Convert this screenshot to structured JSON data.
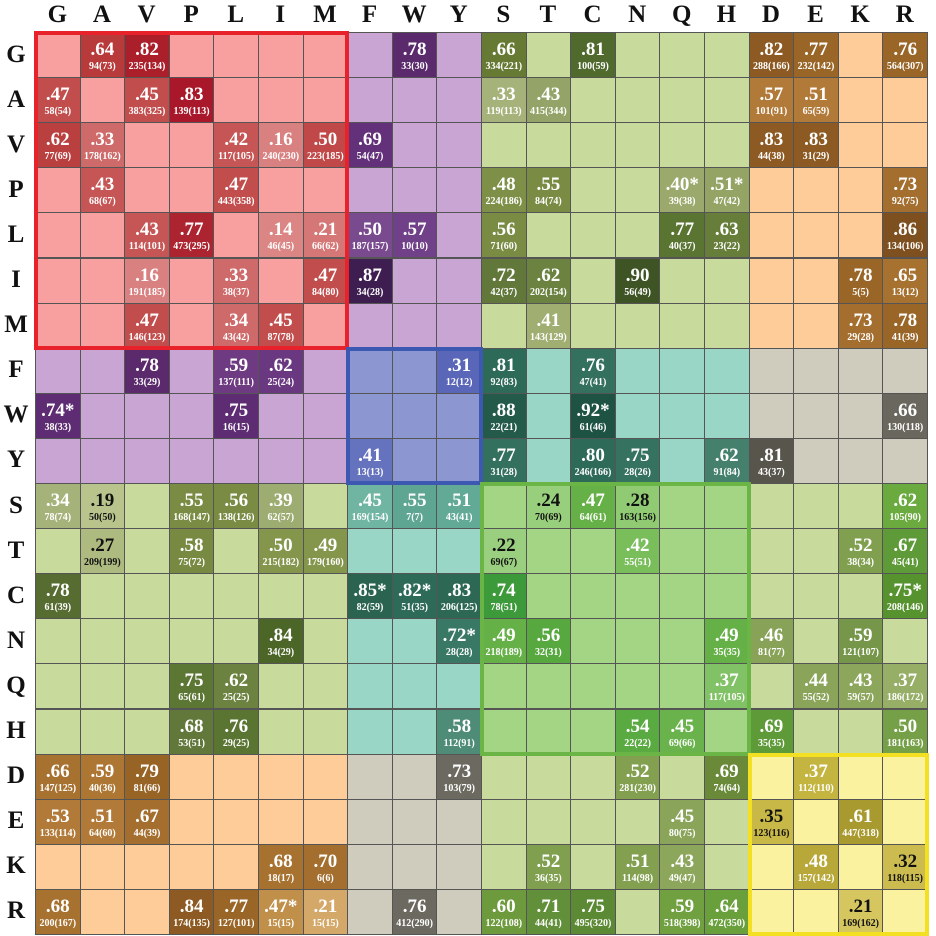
{
  "columns": [
    "G",
    "A",
    "V",
    "P",
    "L",
    "I",
    "M",
    "F",
    "W",
    "Y",
    "S",
    "T",
    "C",
    "N",
    "Q",
    "H",
    "D",
    "E",
    "K",
    "R"
  ],
  "rows": [
    "G",
    "A",
    "V",
    "P",
    "L",
    "I",
    "M",
    "F",
    "W",
    "Y",
    "S",
    "T",
    "C",
    "N",
    "Q",
    "H",
    "D",
    "E",
    "K",
    "R"
  ],
  "region_colors": {
    "aliphatic": "#F8A0A0",
    "aromatic": "#C9A5D4",
    "aromatic_core": "#8C97D2",
    "polar": "#C8DB9C",
    "polar_core": "#A4D585",
    "charged": "#FECC99",
    "charged_core": "#FBF2A0",
    "grey": "#CFCCBE",
    "teal": "#99D6C6"
  },
  "box_colors": {
    "aliphatic": "#E8222A",
    "aromatic": "#3C58B0",
    "polar": "#6AB545",
    "charged": "#F3E022"
  },
  "cells": [
    {
      "r": 0,
      "c": 1,
      "v": ".64",
      "n": "94(73)",
      "bg": "#B83A3A"
    },
    {
      "r": 0,
      "c": 2,
      "v": ".82",
      "n": "235(134)",
      "bg": "#AA1F2A"
    },
    {
      "r": 0,
      "c": 8,
      "v": ".78",
      "n": "33(30)",
      "bg": "#5B2A6C"
    },
    {
      "r": 0,
      "c": 10,
      "v": ".66",
      "n": "334(221)",
      "bg": "#667A34"
    },
    {
      "r": 0,
      "c": 12,
      "v": ".81",
      "n": "100(59)",
      "bg": "#4F6A2C"
    },
    {
      "r": 0,
      "c": 16,
      "v": ".82",
      "n": "288(166)",
      "bg": "#8C5A22"
    },
    {
      "r": 0,
      "c": 17,
      "v": ".77",
      "n": "232(142)",
      "bg": "#9A6628"
    },
    {
      "r": 0,
      "c": 19,
      "v": ".76",
      "n": "564(307)",
      "bg": "#9A6628"
    },
    {
      "r": 1,
      "c": 0,
      "v": ".47",
      "n": "58(54)",
      "bg": "#C24D4D"
    },
    {
      "r": 1,
      "c": 2,
      "v": ".45",
      "n": "383(325)",
      "bg": "#C24D4D"
    },
    {
      "r": 1,
      "c": 3,
      "v": ".83",
      "n": "139(113)",
      "bg": "#A8182A"
    },
    {
      "r": 1,
      "c": 10,
      "v": ".33",
      "n": "119(113)",
      "bg": "#A5B27A"
    },
    {
      "r": 1,
      "c": 11,
      "v": ".43",
      "n": "415(344)",
      "bg": "#94A468"
    },
    {
      "r": 1,
      "c": 16,
      "v": ".57",
      "n": "101(91)",
      "bg": "#B27A38"
    },
    {
      "r": 1,
      "c": 17,
      "v": ".51",
      "n": "65(59)",
      "bg": "#B27A38"
    },
    {
      "r": 2,
      "c": 0,
      "v": ".62",
      "n": "77(69)",
      "bg": "#BA3F3F"
    },
    {
      "r": 2,
      "c": 1,
      "v": ".33",
      "n": "178(162)",
      "bg": "#CE6A6A"
    },
    {
      "r": 2,
      "c": 4,
      "v": ".42",
      "n": "117(105)",
      "bg": "#C65656"
    },
    {
      "r": 2,
      "c": 5,
      "v": ".16",
      "n": "240(230)",
      "bg": "#D98080"
    },
    {
      "r": 2,
      "c": 6,
      "v": ".50",
      "n": "223(185)",
      "bg": "#C04848"
    },
    {
      "r": 2,
      "c": 7,
      "v": ".69",
      "n": "54(47)",
      "bg": "#63307A"
    },
    {
      "r": 2,
      "c": 16,
      "v": ".83",
      "n": "44(38)",
      "bg": "#8C5A22"
    },
    {
      "r": 2,
      "c": 17,
      "v": ".83",
      "n": "31(29)",
      "bg": "#8C5A22"
    },
    {
      "r": 3,
      "c": 1,
      "v": ".43",
      "n": "68(67)",
      "bg": "#C65656"
    },
    {
      "r": 3,
      "c": 4,
      "v": ".47",
      "n": "443(358)",
      "bg": "#C24D4D"
    },
    {
      "r": 3,
      "c": 10,
      "v": ".48",
      "n": "224(186)",
      "bg": "#7E9048"
    },
    {
      "r": 3,
      "c": 11,
      "v": ".55",
      "n": "84(74)",
      "bg": "#7A8C44"
    },
    {
      "r": 3,
      "c": 14,
      "v": ".40*",
      "n": "39(38)",
      "bg": "#9BAA6C"
    },
    {
      "r": 3,
      "c": 15,
      "v": ".51*",
      "n": "47(42)",
      "bg": "#93A465"
    },
    {
      "r": 3,
      "c": 19,
      "v": ".73",
      "n": "92(75)",
      "bg": "#A36E2E"
    },
    {
      "r": 4,
      "c": 2,
      "v": ".43",
      "n": "114(101)",
      "bg": "#C65656"
    },
    {
      "r": 4,
      "c": 3,
      "v": ".77",
      "n": "473(295)",
      "bg": "#AC2430"
    },
    {
      "r": 4,
      "c": 5,
      "v": ".14",
      "n": "46(45)",
      "bg": "#DB8585"
    },
    {
      "r": 4,
      "c": 6,
      "v": ".21",
      "n": "66(62)",
      "bg": "#D67777"
    },
    {
      "r": 4,
      "c": 7,
      "v": ".50",
      "n": "187(157)",
      "bg": "#7A4A8E"
    },
    {
      "r": 4,
      "c": 8,
      "v": ".57",
      "n": "10(10)",
      "bg": "#704088"
    },
    {
      "r": 4,
      "c": 10,
      "v": ".56",
      "n": "71(60)",
      "bg": "#7A8C44"
    },
    {
      "r": 4,
      "c": 14,
      "v": ".77",
      "n": "40(37)",
      "bg": "#5A7432"
    },
    {
      "r": 4,
      "c": 15,
      "v": ".63",
      "n": "23(22)",
      "bg": "#677E3A"
    },
    {
      "r": 4,
      "c": 19,
      "v": ".86",
      "n": "134(106)",
      "bg": "#7E5020"
    },
    {
      "r": 5,
      "c": 2,
      "v": ".16",
      "n": "191(185)",
      "bg": "#D98080"
    },
    {
      "r": 5,
      "c": 4,
      "v": ".33",
      "n": "38(37)",
      "bg": "#CE6A6A"
    },
    {
      "r": 5,
      "c": 6,
      "v": ".47",
      "n": "84(80)",
      "bg": "#C24D4D"
    },
    {
      "r": 5,
      "c": 7,
      "v": ".87",
      "n": "34(28)",
      "bg": "#3E1E50"
    },
    {
      "r": 5,
      "c": 10,
      "v": ".72",
      "n": "42(37)",
      "bg": "#62783A"
    },
    {
      "r": 5,
      "c": 11,
      "v": ".62",
      "n": "202(154)",
      "bg": "#6C8240"
    },
    {
      "r": 5,
      "c": 13,
      "v": ".90",
      "n": "56(49)",
      "bg": "#3E5424"
    },
    {
      "r": 5,
      "c": 18,
      "v": ".78",
      "n": "5(5)",
      "bg": "#9A6628"
    },
    {
      "r": 5,
      "c": 19,
      "v": ".65",
      "n": "13(12)",
      "bg": "#A7712F"
    },
    {
      "r": 6,
      "c": 2,
      "v": ".47",
      "n": "146(123)",
      "bg": "#C24D4D"
    },
    {
      "r": 6,
      "c": 4,
      "v": ".34",
      "n": "43(42)",
      "bg": "#CE6A6A"
    },
    {
      "r": 6,
      "c": 5,
      "v": ".45",
      "n": "87(78)",
      "bg": "#C24D4D"
    },
    {
      "r": 6,
      "c": 11,
      "v": ".41",
      "n": "143(129)",
      "bg": "#A0AE72"
    },
    {
      "r": 6,
      "c": 18,
      "v": ".73",
      "n": "29(28)",
      "bg": "#A36E2E"
    },
    {
      "r": 6,
      "c": 19,
      "v": ".78",
      "n": "41(39)",
      "bg": "#9A6628"
    },
    {
      "r": 7,
      "c": 2,
      "v": ".78",
      "n": "33(29)",
      "bg": "#5B2A6C"
    },
    {
      "r": 7,
      "c": 4,
      "v": ".59",
      "n": "137(111)",
      "bg": "#6E3A82"
    },
    {
      "r": 7,
      "c": 5,
      "v": ".62",
      "n": "25(24)",
      "bg": "#6A3880"
    },
    {
      "r": 7,
      "c": 9,
      "v": ".31",
      "n": "12(12)",
      "bg": "#5A66B8"
    },
    {
      "r": 7,
      "c": 10,
      "v": ".81",
      "n": "92(83)",
      "bg": "#2E6A58"
    },
    {
      "r": 7,
      "c": 12,
      "v": ".76",
      "n": "47(41)",
      "bg": "#34705E"
    },
    {
      "r": 8,
      "c": 0,
      "v": ".74*",
      "n": "38(33)",
      "bg": "#5E2C72"
    },
    {
      "r": 8,
      "c": 4,
      "v": ".75",
      "n": "16(15)",
      "bg": "#5E2C72"
    },
    {
      "r": 8,
      "c": 10,
      "v": ".88",
      "n": "22(21)",
      "bg": "#245A4A"
    },
    {
      "r": 8,
      "c": 12,
      "v": ".92*",
      "n": "61(46)",
      "bg": "#1E5242"
    },
    {
      "r": 8,
      "c": 19,
      "v": ".66",
      "n": "130(118)",
      "bg": "#6A685E"
    },
    {
      "r": 9,
      "c": 7,
      "v": ".41",
      "n": "13(13)",
      "bg": "#6572BE"
    },
    {
      "r": 9,
      "c": 10,
      "v": ".77",
      "n": "31(28)",
      "bg": "#34705E"
    },
    {
      "r": 9,
      "c": 12,
      "v": ".80",
      "n": "246(166)",
      "bg": "#2E6A58"
    },
    {
      "r": 9,
      "c": 13,
      "v": ".75",
      "n": "28(26)",
      "bg": "#367260"
    },
    {
      "r": 9,
      "c": 15,
      "v": ".62",
      "n": "91(84)",
      "bg": "#45806C"
    },
    {
      "r": 9,
      "c": 16,
      "v": ".81",
      "n": "43(37)",
      "bg": "#57554C"
    },
    {
      "r": 10,
      "c": 0,
      "v": ".34",
      "n": "78(74)",
      "bg": "#A5B27A"
    },
    {
      "r": 10,
      "c": 1,
      "v": ".19",
      "n": "50(50)",
      "bg": "#B8C48C"
    },
    {
      "r": 10,
      "c": 3,
      "v": ".55",
      "n": "168(147)",
      "bg": "#7A8C44"
    },
    {
      "r": 10,
      "c": 4,
      "v": ".56",
      "n": "138(126)",
      "bg": "#7A8C44"
    },
    {
      "r": 10,
      "c": 5,
      "v": ".39",
      "n": "62(57)",
      "bg": "#9DAC70"
    },
    {
      "r": 10,
      "c": 7,
      "v": ".45",
      "n": "169(154)",
      "bg": "#6FB5A2"
    },
    {
      "r": 10,
      "c": 8,
      "v": ".55",
      "n": "7(7)",
      "bg": "#5EA692"
    },
    {
      "r": 10,
      "c": 9,
      "v": ".51",
      "n": "43(41)",
      "bg": "#62AA96"
    },
    {
      "r": 10,
      "c": 11,
      "v": ".24",
      "n": "70(69)",
      "bg": "#98CF7C"
    },
    {
      "r": 10,
      "c": 12,
      "v": ".47",
      "n": "64(61)",
      "bg": "#66B048"
    },
    {
      "r": 10,
      "c": 13,
      "v": ".28",
      "n": "163(156)",
      "bg": "#90CB74"
    },
    {
      "r": 10,
      "c": 19,
      "v": ".62",
      "n": "105(90)",
      "bg": "#6AAA3E"
    },
    {
      "r": 11,
      "c": 1,
      "v": ".27",
      "n": "209(199)",
      "bg": "#ADBA80"
    },
    {
      "r": 11,
      "c": 3,
      "v": ".58",
      "n": "75(72)",
      "bg": "#788A42"
    },
    {
      "r": 11,
      "c": 5,
      "v": ".50",
      "n": "215(182)",
      "bg": "#84964C"
    },
    {
      "r": 11,
      "c": 6,
      "v": ".49",
      "n": "179(160)",
      "bg": "#84964C"
    },
    {
      "r": 11,
      "c": 10,
      "v": ".22",
      "n": "69(67)",
      "bg": "#9ACF7F"
    },
    {
      "r": 11,
      "c": 13,
      "v": ".42",
      "n": "55(51)",
      "bg": "#7ABE5C"
    },
    {
      "r": 11,
      "c": 18,
      "v": ".52",
      "n": "38(34)",
      "bg": "#80A050"
    },
    {
      "r": 11,
      "c": 19,
      "v": ".67",
      "n": "45(41)",
      "bg": "#5E9A38"
    },
    {
      "r": 12,
      "c": 0,
      "v": ".78",
      "n": "61(39)",
      "bg": "#566C30"
    },
    {
      "r": 12,
      "c": 7,
      "v": ".85*",
      "n": "82(59)",
      "bg": "#2A6450"
    },
    {
      "r": 12,
      "c": 8,
      "v": ".82*",
      "n": "51(35)",
      "bg": "#2E6A58"
    },
    {
      "r": 12,
      "c": 9,
      "v": ".83",
      "n": "206(125)",
      "bg": "#2C6854"
    },
    {
      "r": 12,
      "c": 10,
      "v": ".74",
      "n": "78(51)",
      "bg": "#3C9A3A"
    },
    {
      "r": 12,
      "c": 19,
      "v": ".75*",
      "n": "208(146)",
      "bg": "#56922E"
    },
    {
      "r": 13,
      "c": 5,
      "v": ".84",
      "n": "34(29)",
      "bg": "#4C6628"
    },
    {
      "r": 13,
      "c": 9,
      "v": ".72*",
      "n": "28(28)",
      "bg": "#3A7866"
    },
    {
      "r": 13,
      "c": 10,
      "v": ".49",
      "n": "218(189)",
      "bg": "#66B048"
    },
    {
      "r": 13,
      "c": 11,
      "v": ".56",
      "n": "32(31)",
      "bg": "#58A840"
    },
    {
      "r": 13,
      "c": 15,
      "v": ".49",
      "n": "35(35)",
      "bg": "#66B048"
    },
    {
      "r": 13,
      "c": 16,
      "v": ".46",
      "n": "81(77)",
      "bg": "#88A258"
    },
    {
      "r": 13,
      "c": 18,
      "v": ".59",
      "n": "121(107)",
      "bg": "#76964A"
    },
    {
      "r": 14,
      "c": 3,
      "v": ".75",
      "n": "65(61)",
      "bg": "#5C7634"
    },
    {
      "r": 14,
      "c": 4,
      "v": ".62",
      "n": "25(25)",
      "bg": "#6C8240"
    },
    {
      "r": 14,
      "c": 15,
      "v": ".37",
      "n": "117(105)",
      "bg": "#82C266"
    },
    {
      "r": 14,
      "c": 17,
      "v": ".44",
      "n": "55(52)",
      "bg": "#8AA45A"
    },
    {
      "r": 14,
      "c": 18,
      "v": ".43",
      "n": "59(57)",
      "bg": "#8CA65C"
    },
    {
      "r": 14,
      "c": 19,
      "v": ".37",
      "n": "186(172)",
      "bg": "#96AE66"
    },
    {
      "r": 15,
      "c": 3,
      "v": ".68",
      "n": "53(51)",
      "bg": "#62783A"
    },
    {
      "r": 15,
      "c": 4,
      "v": ".76",
      "n": "29(25)",
      "bg": "#5A7432"
    },
    {
      "r": 15,
      "c": 9,
      "v": ".58",
      "n": "112(91)",
      "bg": "#4E8C78"
    },
    {
      "r": 15,
      "c": 13,
      "v": ".54",
      "n": "22(22)",
      "bg": "#5AAA42"
    },
    {
      "r": 15,
      "c": 14,
      "v": ".45",
      "n": "69(66)",
      "bg": "#6AB24C"
    },
    {
      "r": 15,
      "c": 16,
      "v": ".69",
      "n": "35(35)",
      "bg": "#5E9A38"
    },
    {
      "r": 15,
      "c": 19,
      "v": ".50",
      "n": "181(163)",
      "bg": "#76A048"
    },
    {
      "r": 16,
      "c": 0,
      "v": ".66",
      "n": "147(125)",
      "bg": "#A7712F"
    },
    {
      "r": 16,
      "c": 1,
      "v": ".59",
      "n": "40(36)",
      "bg": "#AE7633"
    },
    {
      "r": 16,
      "c": 2,
      "v": ".79",
      "n": "81(66)",
      "bg": "#986426"
    },
    {
      "r": 16,
      "c": 9,
      "v": ".73",
      "n": "103(79)",
      "bg": "#6C6A60"
    },
    {
      "r": 16,
      "c": 13,
      "v": ".52",
      "n": "281(230)",
      "bg": "#82A050"
    },
    {
      "r": 16,
      "c": 15,
      "v": ".69",
      "n": "74(64)",
      "bg": "#6A8A3A"
    },
    {
      "r": 16,
      "c": 17,
      "v": ".37",
      "n": "112(110)",
      "bg": "#C4B440"
    },
    {
      "r": 17,
      "c": 0,
      "v": ".53",
      "n": "133(114)",
      "bg": "#B27A38"
    },
    {
      "r": 17,
      "c": 1,
      "v": ".51",
      "n": "64(60)",
      "bg": "#B27A38"
    },
    {
      "r": 17,
      "c": 2,
      "v": ".67",
      "n": "44(39)",
      "bg": "#A36E2E"
    },
    {
      "r": 17,
      "c": 14,
      "v": ".45",
      "n": "80(75)",
      "bg": "#8AA45A"
    },
    {
      "r": 17,
      "c": 16,
      "v": ".35",
      "n": "123(116)",
      "bg": "#C8B848"
    },
    {
      "r": 17,
      "c": 18,
      "v": ".61",
      "n": "447(318)",
      "bg": "#A89A2E"
    },
    {
      "r": 18,
      "c": 5,
      "v": ".68",
      "n": "18(17)",
      "bg": "#A7712F"
    },
    {
      "r": 18,
      "c": 6,
      "v": ".70",
      "n": "6(6)",
      "bg": "#A36E2E"
    },
    {
      "r": 18,
      "c": 11,
      "v": ".52",
      "n": "36(35)",
      "bg": "#80A050"
    },
    {
      "r": 18,
      "c": 13,
      "v": ".51",
      "n": "114(98)",
      "bg": "#82A050"
    },
    {
      "r": 18,
      "c": 14,
      "v": ".43",
      "n": "49(47)",
      "bg": "#8CA65C"
    },
    {
      "r": 18,
      "c": 17,
      "v": ".48",
      "n": "157(142)",
      "bg": "#B8A83A"
    },
    {
      "r": 18,
      "c": 19,
      "v": ".32",
      "n": "118(115)",
      "bg": "#CCBC50"
    },
    {
      "r": 19,
      "c": 0,
      "v": ".68",
      "n": "200(167)",
      "bg": "#A7712F"
    },
    {
      "r": 19,
      "c": 3,
      "v": ".84",
      "n": "174(135)",
      "bg": "#8C5A22"
    },
    {
      "r": 19,
      "c": 4,
      "v": ".77",
      "n": "127(101)",
      "bg": "#9A6628"
    },
    {
      "r": 19,
      "c": 5,
      "v": ".47*",
      "n": "15(15)",
      "bg": "#C0904A"
    },
    {
      "r": 19,
      "c": 6,
      "v": ".21",
      "n": "15(15)",
      "bg": "#D4A868"
    },
    {
      "r": 19,
      "c": 8,
      "v": ".76",
      "n": "412(290)",
      "bg": "#6C6A60"
    },
    {
      "r": 19,
      "c": 10,
      "v": ".60",
      "n": "122(108)",
      "bg": "#6E9A3E"
    },
    {
      "r": 19,
      "c": 11,
      "v": ".71",
      "n": "44(41)",
      "bg": "#62903A"
    },
    {
      "r": 19,
      "c": 12,
      "v": ".75",
      "n": "495(320)",
      "bg": "#5C8A34"
    },
    {
      "r": 19,
      "c": 14,
      "v": ".59",
      "n": "518(398)",
      "bg": "#70A040"
    },
    {
      "r": 19,
      "c": 15,
      "v": ".64",
      "n": "472(350)",
      "bg": "#6AA03C"
    },
    {
      "r": 19,
      "c": 18,
      "v": ".21",
      "n": "169(162)",
      "bg": "#D6C660"
    }
  ]
}
